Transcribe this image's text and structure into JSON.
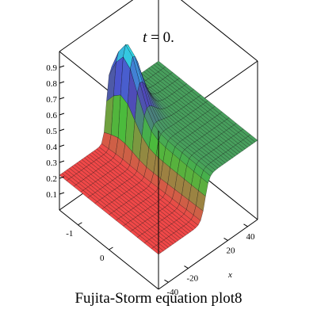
{
  "chart_data": {
    "type": "surface3d",
    "title_var": "t",
    "title_rest": " = 0.",
    "caption": "Fujita-Storm equation plot8",
    "xlabel": "x",
    "ylabel": "",
    "zlabel": "",
    "x_ticks": [
      "-40",
      "-20",
      "20",
      "40"
    ],
    "x_tick_values": [
      -40,
      -20,
      20,
      40
    ],
    "y_ticks": [
      "-1",
      "0"
    ],
    "y_tick_values": [
      -1,
      0
    ],
    "z_ticks": [
      "0.1",
      "0.2",
      "0.3",
      "0.4",
      "0.5",
      "0.6",
      "0.7",
      "0.8",
      "0.9"
    ],
    "z_tick_values": [
      0.1,
      0.2,
      0.3,
      0.4,
      0.5,
      0.6,
      0.7,
      0.8,
      0.9
    ],
    "x_range": [
      -50,
      50
    ],
    "y_range": [
      -1.6,
      1.6
    ],
    "z_range": [
      0,
      1
    ],
    "surface": {
      "description_level": "kink front",
      "high_plateau": 0.5,
      "low_plateau": 0.22,
      "peak": 0.9,
      "front_x": -3
    },
    "colors": {
      "low_side": "#f04848",
      "high_side": "#2ee6e6",
      "grid_line": "#000000"
    }
  }
}
